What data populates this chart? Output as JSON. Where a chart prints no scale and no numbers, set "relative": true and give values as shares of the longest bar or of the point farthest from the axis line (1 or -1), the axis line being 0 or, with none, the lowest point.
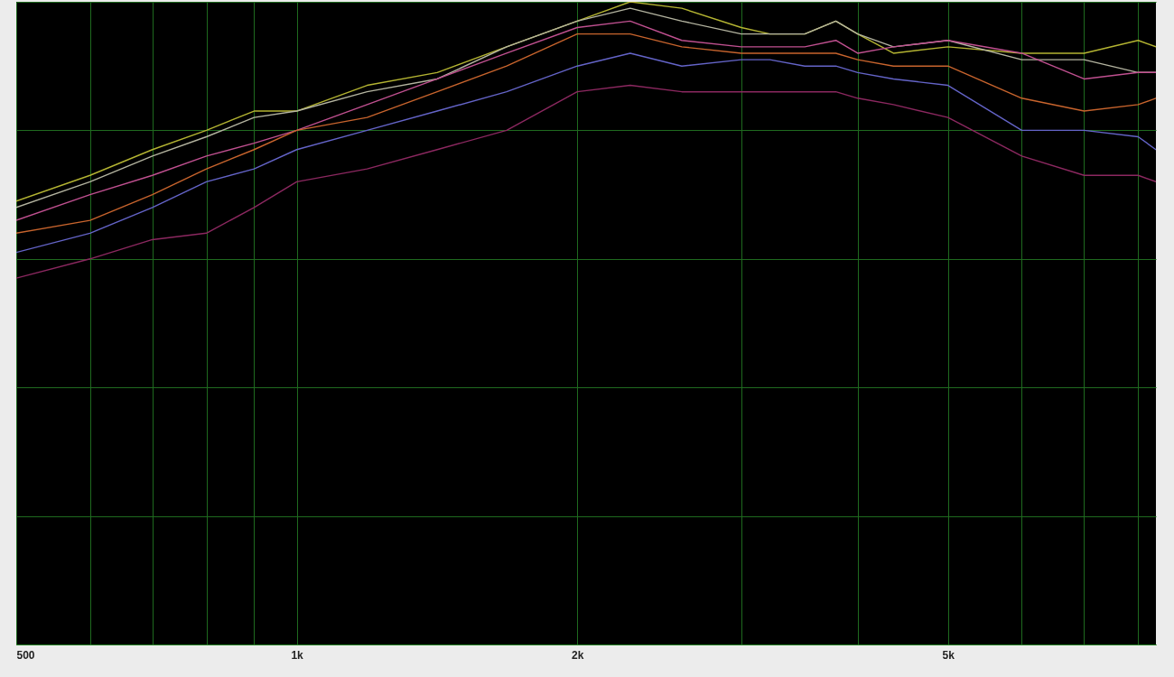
{
  "chart_data": {
    "type": "line",
    "relative": true,
    "log": "x",
    "grid": true,
    "tick_labels": "x",
    "line_style": "solid",
    "x": [
      500,
      600,
      700,
      800,
      900,
      1000,
      1190,
      1415,
      1680,
      2000,
      2280,
      2590,
      3000,
      3220,
      3510,
      3790,
      4000,
      4370,
      5000,
      6000,
      7000,
      8000,
      8360
    ],
    "xlim": [
      500,
      8360
    ],
    "xticks": [
      {
        "value": 500,
        "label": "500"
      },
      {
        "value": 600,
        "label": null
      },
      {
        "value": 700,
        "label": null
      },
      {
        "value": 800,
        "label": null
      },
      {
        "value": 900,
        "label": null
      },
      {
        "value": 1000,
        "label": "1k"
      },
      {
        "value": 2000,
        "label": "2k"
      },
      {
        "value": 3000,
        "label": null
      },
      {
        "value": 4000,
        "label": null
      },
      {
        "value": 5000,
        "label": "5k"
      },
      {
        "value": 6000,
        "label": null
      },
      {
        "value": 7000,
        "label": null
      },
      {
        "value": 8000,
        "label": null
      }
    ],
    "series": [
      {
        "color": "#b4b432",
        "values": [
          0.69,
          0.73,
          0.77,
          0.8,
          0.83,
          0.83,
          0.87,
          0.89,
          0.93,
          0.97,
          1,
          0.99,
          0.96,
          0.95,
          0.95,
          0.97,
          0.95,
          0.92,
          0.93,
          0.92,
          0.92,
          0.94,
          0.93
        ]
      },
      {
        "color": "#b4b4a0",
        "values": [
          0.68,
          0.72,
          0.76,
          0.79,
          0.82,
          0.83,
          0.86,
          0.88,
          0.93,
          0.97,
          0.99,
          0.97,
          0.95,
          0.95,
          0.95,
          0.97,
          0.95,
          0.93,
          0.94,
          0.91,
          0.91,
          0.89,
          0.89
        ]
      },
      {
        "color": "#c05090",
        "values": [
          0.66,
          0.7,
          0.73,
          0.76,
          0.78,
          0.8,
          0.84,
          0.88,
          0.92,
          0.96,
          0.97,
          0.94,
          0.93,
          0.93,
          0.93,
          0.94,
          0.92,
          0.93,
          0.94,
          0.92,
          0.88,
          0.89,
          0.89
        ]
      },
      {
        "color": "#c8642d",
        "values": [
          0.64,
          0.66,
          0.7,
          0.74,
          0.77,
          0.8,
          0.82,
          0.86,
          0.9,
          0.95,
          0.95,
          0.93,
          0.92,
          0.92,
          0.92,
          0.92,
          0.91,
          0.9,
          0.9,
          0.85,
          0.83,
          0.84,
          0.85
        ]
      },
      {
        "color": "#6464c8",
        "values": [
          0.61,
          0.64,
          0.68,
          0.72,
          0.74,
          0.77,
          0.8,
          0.83,
          0.86,
          0.9,
          0.92,
          0.9,
          0.91,
          0.91,
          0.9,
          0.9,
          0.89,
          0.88,
          0.87,
          0.8,
          0.8,
          0.79,
          0.77
        ]
      },
      {
        "color": "#8c2860",
        "values": [
          0.57,
          0.6,
          0.63,
          0.64,
          0.68,
          0.72,
          0.74,
          0.77,
          0.8,
          0.86,
          0.87,
          0.86,
          0.86,
          0.86,
          0.86,
          0.86,
          0.85,
          0.84,
          0.82,
          0.76,
          0.73,
          0.73,
          0.72
        ]
      }
    ]
  }
}
